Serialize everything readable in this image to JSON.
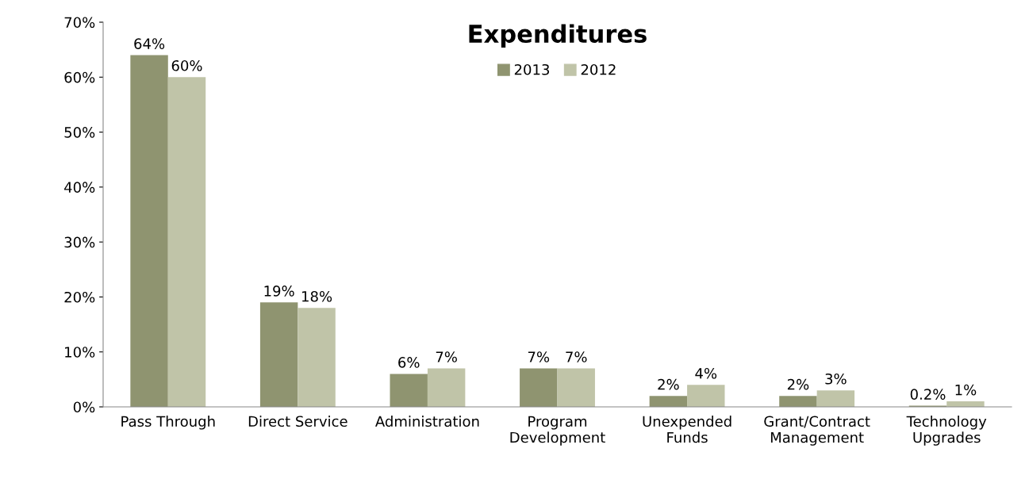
{
  "chart_data": {
    "type": "bar",
    "title": "Expenditures",
    "categories": [
      "Pass Through",
      "Direct Service",
      "Administration",
      "Program\nDevelopment",
      "Unexpended\nFunds",
      "Grant/Contract\nManagement",
      "Technology\nUpgrades"
    ],
    "series": [
      {
        "name": "2013",
        "color": "#8f9470",
        "values": [
          64,
          19,
          6,
          7,
          2,
          2,
          0.2
        ],
        "value_labels": [
          "64%",
          "19%",
          "6%",
          "7%",
          "2%",
          "2%",
          "0.2%"
        ]
      },
      {
        "name": "2012",
        "color": "#c0c4a8",
        "values": [
          60,
          18,
          7,
          7,
          4,
          3,
          1
        ],
        "value_labels": [
          "60%",
          "18%",
          "7%",
          "7%",
          "4%",
          "3%",
          "1%"
        ]
      }
    ],
    "ylim": [
      0,
      70
    ],
    "yticks": [
      {
        "value": 0,
        "label": "0%"
      },
      {
        "value": 10,
        "label": "10%"
      },
      {
        "value": 20,
        "label": "20%"
      },
      {
        "value": 30,
        "label": "30%"
      },
      {
        "value": 40,
        "label": "40%"
      },
      {
        "value": 50,
        "label": "50%"
      },
      {
        "value": 60,
        "label": "60%"
      },
      {
        "value": 70,
        "label": "70%"
      }
    ],
    "grid": false,
    "legend": "top"
  }
}
